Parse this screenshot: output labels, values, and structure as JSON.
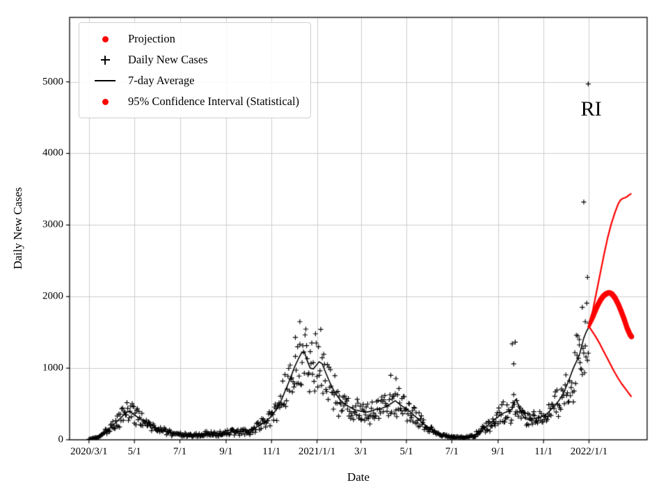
{
  "chart_data": {
    "type": "line",
    "title": "",
    "xlabel": "Date",
    "ylabel": "Daily New Cases",
    "x_unit": "days_since_2020-03-01",
    "xlim": [
      -26,
      749
    ],
    "ylim": [
      0,
      5900
    ],
    "grid": true,
    "annotation": {
      "text": "RI",
      "day": 674,
      "value": 4620
    },
    "colors": {
      "grid": "#cccccc",
      "frame": "#000000",
      "projection": "#ff0000",
      "cases": "#000000",
      "average": "#000000"
    },
    "legend": {
      "position": "upper left",
      "items": [
        {
          "label": "Projection",
          "marker": "dot",
          "color": "#ff0000"
        },
        {
          "label": "Daily New Cases",
          "marker": "plus",
          "color": "#000000"
        },
        {
          "label": "7-day Average",
          "marker": "line",
          "color": "#000000"
        },
        {
          "label": "95% Confidence Interval (Statistical)",
          "marker": "dot",
          "color": "#ff0000"
        }
      ]
    },
    "xticks": [
      {
        "day": 0,
        "label": "2020/3/1"
      },
      {
        "day": 61,
        "label": "5/1"
      },
      {
        "day": 122,
        "label": "7/1"
      },
      {
        "day": 184,
        "label": "9/1"
      },
      {
        "day": 245,
        "label": "11/1"
      },
      {
        "day": 306,
        "label": "2021/1/1"
      },
      {
        "day": 365,
        "label": "3/1"
      },
      {
        "day": 426,
        "label": "5/1"
      },
      {
        "day": 487,
        "label": "7/1"
      },
      {
        "day": 549,
        "label": "9/1"
      },
      {
        "day": 610,
        "label": "11/1"
      },
      {
        "day": 671,
        "label": "2022/1/1"
      }
    ],
    "yticks": [
      0,
      1000,
      2000,
      3000,
      4000,
      5000
    ],
    "series": [
      {
        "name": "7-day Average",
        "type": "line",
        "color": "#000000",
        "width": 1.6,
        "points": [
          [
            0,
            5
          ],
          [
            5,
            15
          ],
          [
            12,
            40
          ],
          [
            20,
            90
          ],
          [
            28,
            160
          ],
          [
            36,
            240
          ],
          [
            44,
            320
          ],
          [
            50,
            385
          ],
          [
            55,
            395
          ],
          [
            61,
            345
          ],
          [
            68,
            300
          ],
          [
            75,
            260
          ],
          [
            82,
            225
          ],
          [
            90,
            170
          ],
          [
            97,
            135
          ],
          [
            105,
            110
          ],
          [
            115,
            95
          ],
          [
            122,
            85
          ],
          [
            128,
            70
          ],
          [
            135,
            62
          ],
          [
            142,
            65
          ],
          [
            150,
            80
          ],
          [
            158,
            98
          ],
          [
            165,
            92
          ],
          [
            172,
            85
          ],
          [
            184,
            95
          ],
          [
            192,
            105
          ],
          [
            200,
            110
          ],
          [
            208,
            118
          ],
          [
            215,
            135
          ],
          [
            222,
            160
          ],
          [
            230,
            205
          ],
          [
            238,
            260
          ],
          [
            245,
            330
          ],
          [
            252,
            430
          ],
          [
            258,
            550
          ],
          [
            264,
            700
          ],
          [
            270,
            850
          ],
          [
            276,
            1020
          ],
          [
            281,
            1130
          ],
          [
            285,
            1210
          ],
          [
            289,
            1230
          ],
          [
            293,
            1100
          ],
          [
            297,
            1000
          ],
          [
            301,
            990
          ],
          [
            305,
            1040
          ],
          [
            309,
            1090
          ],
          [
            313,
            1060
          ],
          [
            318,
            930
          ],
          [
            324,
            780
          ],
          [
            330,
            660
          ],
          [
            336,
            570
          ],
          [
            342,
            510
          ],
          [
            350,
            455
          ],
          [
            358,
            415
          ],
          [
            365,
            400
          ],
          [
            372,
            385
          ],
          [
            379,
            400
          ],
          [
            386,
            430
          ],
          [
            393,
            440
          ],
          [
            400,
            470
          ],
          [
            406,
            510
          ],
          [
            411,
            545
          ],
          [
            416,
            505
          ],
          [
            421,
            465
          ],
          [
            426,
            430
          ],
          [
            432,
            380
          ],
          [
            438,
            325
          ],
          [
            444,
            270
          ],
          [
            450,
            215
          ],
          [
            456,
            165
          ],
          [
            462,
            125
          ],
          [
            468,
            95
          ],
          [
            474,
            70
          ],
          [
            480,
            52
          ],
          [
            487,
            40
          ],
          [
            494,
            32
          ],
          [
            500,
            30
          ],
          [
            506,
            35
          ],
          [
            512,
            48
          ],
          [
            518,
            70
          ],
          [
            524,
            105
          ],
          [
            530,
            150
          ],
          [
            536,
            210
          ],
          [
            542,
            265
          ],
          [
            549,
            320
          ],
          [
            554,
            360
          ],
          [
            559,
            385
          ],
          [
            564,
            400
          ],
          [
            568,
            430
          ],
          [
            571,
            540
          ],
          [
            573,
            565
          ],
          [
            575,
            520
          ],
          [
            578,
            430
          ],
          [
            581,
            350
          ],
          [
            585,
            300
          ],
          [
            590,
            280
          ],
          [
            595,
            285
          ],
          [
            600,
            300
          ],
          [
            605,
            315
          ],
          [
            610,
            330
          ],
          [
            614,
            360
          ],
          [
            618,
            400
          ],
          [
            622,
            445
          ],
          [
            626,
            490
          ],
          [
            630,
            540
          ],
          [
            634,
            600
          ],
          [
            638,
            680
          ],
          [
            642,
            780
          ],
          [
            646,
            890
          ],
          [
            650,
            1000
          ],
          [
            654,
            1090
          ],
          [
            658,
            1180
          ],
          [
            661,
            1300
          ],
          [
            664,
            1420
          ],
          [
            667,
            1500
          ],
          [
            671,
            1580
          ]
        ]
      },
      {
        "name": "Daily New Cases",
        "type": "scatter-plus",
        "color": "#000000",
        "derived_from": "7-day Average",
        "noise_seed": 20220301,
        "noise_low": 0.63,
        "noise_span": 0.74,
        "day_range": [
          0,
          671
        ],
        "outliers": [
          [
            277,
            1430
          ],
          [
            283,
            1650
          ],
          [
            405,
            900
          ],
          [
            412,
            855
          ],
          [
            568,
            1340
          ],
          [
            570,
            1060
          ],
          [
            572,
            1365
          ],
          [
            658,
            1400
          ],
          [
            662,
            1850
          ],
          [
            664,
            3320
          ],
          [
            666,
            1650
          ],
          [
            669,
            2270
          ],
          [
            670,
            4970
          ]
        ]
      },
      {
        "name": "Projection",
        "type": "dots-line",
        "color": "#ff0000",
        "dot_radius": 3.8,
        "points": [
          [
            671,
            1580
          ],
          [
            674,
            1660
          ],
          [
            678,
            1770
          ],
          [
            682,
            1865
          ],
          [
            686,
            1945
          ],
          [
            690,
            2005
          ],
          [
            694,
            2040
          ],
          [
            698,
            2055
          ],
          [
            702,
            2035
          ],
          [
            706,
            1980
          ],
          [
            710,
            1900
          ],
          [
            714,
            1800
          ],
          [
            718,
            1690
          ],
          [
            722,
            1565
          ],
          [
            726,
            1470
          ],
          [
            728,
            1440
          ]
        ]
      },
      {
        "name": "95% CI Upper",
        "type": "line",
        "color": "#ff0000",
        "width": 2.2,
        "points": [
          [
            671,
            1580
          ],
          [
            676,
            1800
          ],
          [
            681,
            2060
          ],
          [
            686,
            2320
          ],
          [
            691,
            2580
          ],
          [
            696,
            2820
          ],
          [
            701,
            3020
          ],
          [
            706,
            3180
          ],
          [
            710,
            3290
          ],
          [
            713,
            3345
          ],
          [
            716,
            3370
          ],
          [
            719,
            3380
          ],
          [
            722,
            3395
          ],
          [
            725,
            3420
          ],
          [
            728,
            3440
          ]
        ]
      },
      {
        "name": "95% CI Lower",
        "type": "line",
        "color": "#ff0000",
        "width": 2.2,
        "points": [
          [
            671,
            1580
          ],
          [
            675,
            1520
          ],
          [
            680,
            1440
          ],
          [
            685,
            1350
          ],
          [
            690,
            1250
          ],
          [
            695,
            1150
          ],
          [
            700,
            1050
          ],
          [
            705,
            950
          ],
          [
            710,
            860
          ],
          [
            715,
            780
          ],
          [
            720,
            710
          ],
          [
            724,
            655
          ],
          [
            728,
            600
          ]
        ]
      }
    ]
  }
}
